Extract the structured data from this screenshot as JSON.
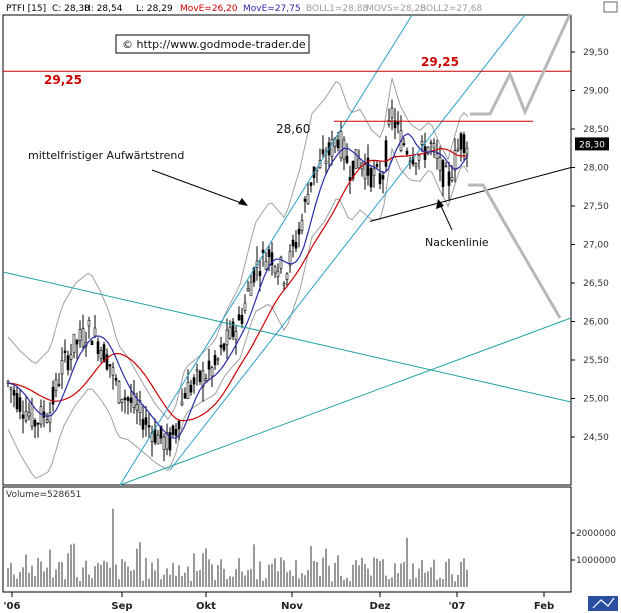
{
  "chart_data": {
    "type": "candlestick",
    "header": {
      "symbol": "PTFI [15]",
      "close": "C: 28,30",
      "high": "H: 28,54",
      "low": "L: 28,29",
      "move1": "MovE=26,20",
      "move2": "MovE=27,75",
      "boll1": "BOLL1=28,88",
      "movs": "MOVS=28,28",
      "boll2": "BOLL2=27,68"
    },
    "copyright": "© http://www.godmode-trader.de",
    "price_axis": {
      "ticks": [
        "29,50",
        "29,00",
        "28,50",
        "28,00",
        "27,50",
        "27,00",
        "26,50",
        "26,00",
        "25,50",
        "25,00",
        "24,50"
      ],
      "tick_values": [
        29.5,
        29.0,
        28.5,
        28.0,
        27.5,
        27.0,
        26.5,
        26.0,
        25.5,
        25.0,
        24.5
      ],
      "current_price_label": "28,30",
      "current_price": 28.3,
      "ylim": [
        24.1,
        30.0
      ]
    },
    "volume_axis": {
      "label": "Volume=528651",
      "ticks": [
        "2000000",
        "1000000"
      ],
      "tick_values": [
        2000000,
        1000000
      ]
    },
    "date_axis": {
      "labels": [
        "'06",
        "Sep",
        "Okt",
        "Nov",
        "Dez",
        "'07",
        "Feb"
      ]
    },
    "annotations": {
      "level_2925": "29,25",
      "level_2925_right": "29,25",
      "level_2860": "28,60",
      "trend_label": "mittelfristiger Aufwärtstrend",
      "neckline_label": "Nackenlinie"
    },
    "colors": {
      "red": "#cc0000",
      "blue": "#2a2aa8",
      "cyan": "#2aa0c8",
      "teal": "#23a3a3",
      "bollinger": "#a0a0a0",
      "projection": "#b8b8b8"
    }
  }
}
